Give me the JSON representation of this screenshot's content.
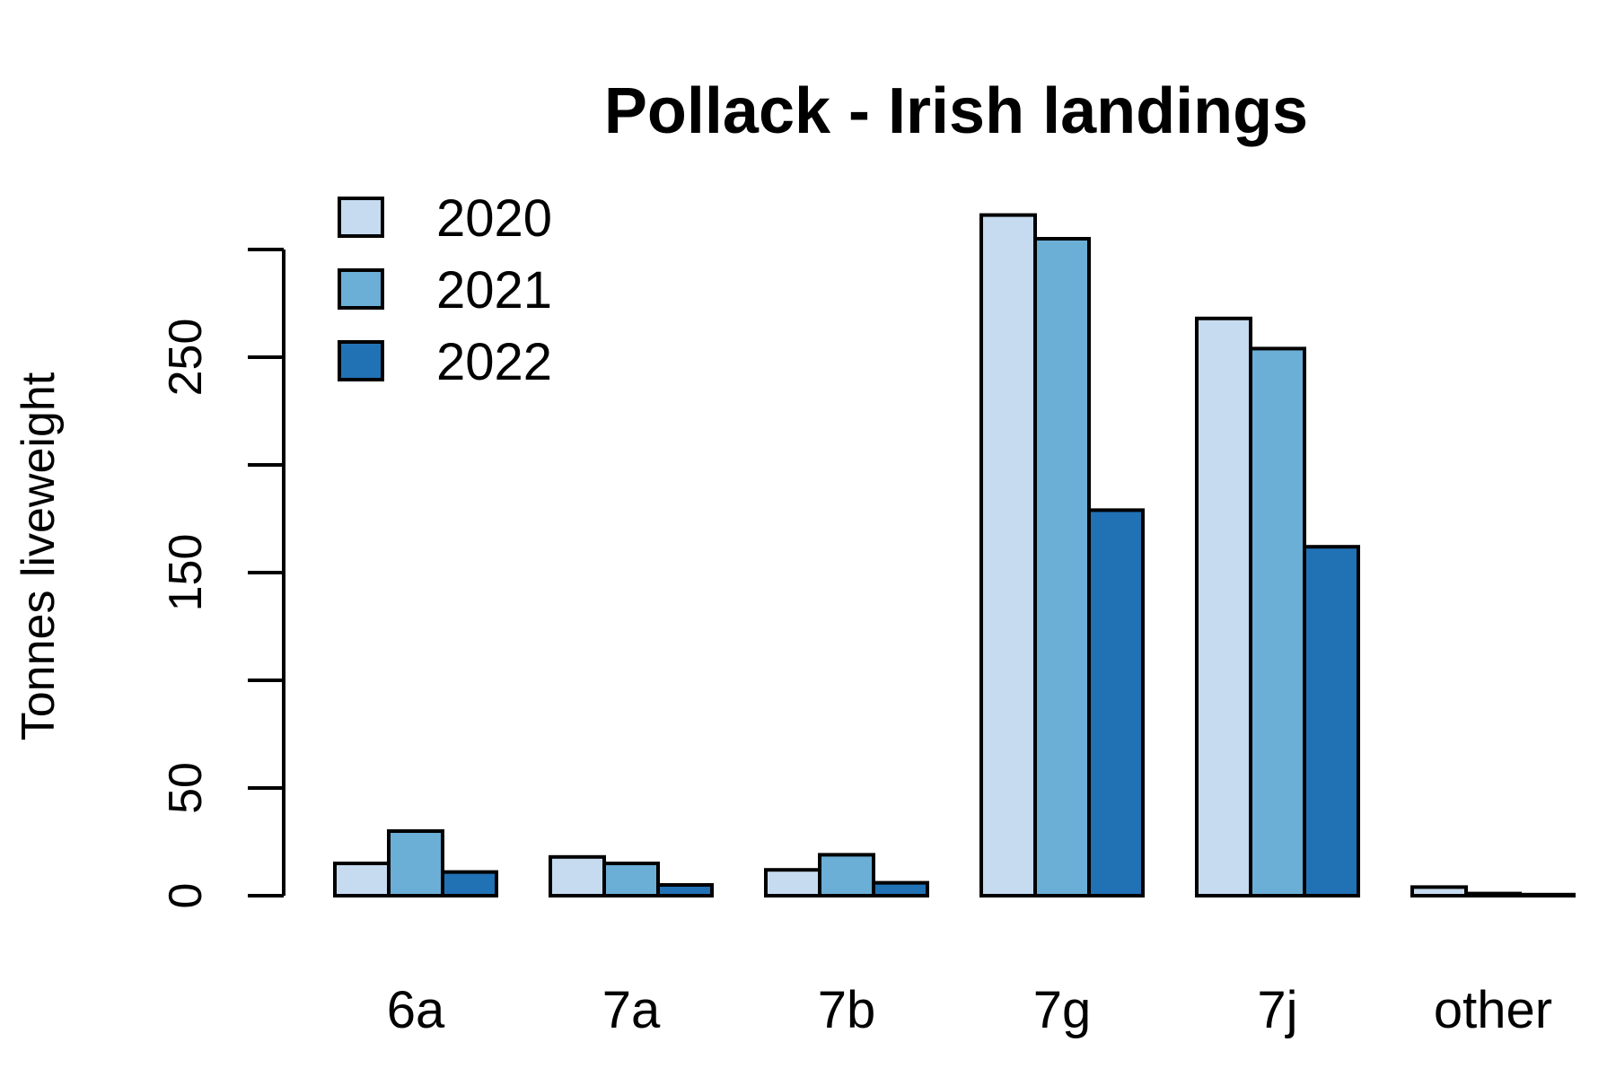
{
  "chart_data": {
    "type": "bar",
    "title": "Pollack - Irish landings",
    "xlabel": "",
    "ylabel": "Tonnes liveweight",
    "categories": [
      "6a",
      "7a",
      "7b",
      "7g",
      "7j",
      "other"
    ],
    "series": [
      {
        "name": "2020",
        "color": "#c6dbef",
        "values": [
          15,
          18,
          12,
          316,
          268,
          4
        ]
      },
      {
        "name": "2021",
        "color": "#6baed6",
        "values": [
          30,
          15,
          19,
          305,
          254,
          1
        ]
      },
      {
        "name": "2022",
        "color": "#2171b5",
        "values": [
          11,
          5,
          6,
          179,
          162,
          0.5
        ]
      }
    ],
    "ylim": [
      0,
      300
    ],
    "yticks": [
      0,
      50,
      100,
      150,
      200,
      250,
      300
    ],
    "ytick_labels": [
      "0",
      "50",
      "",
      "150",
      "",
      "250",
      ""
    ],
    "legend_position": "top-left",
    "grid": false
  }
}
